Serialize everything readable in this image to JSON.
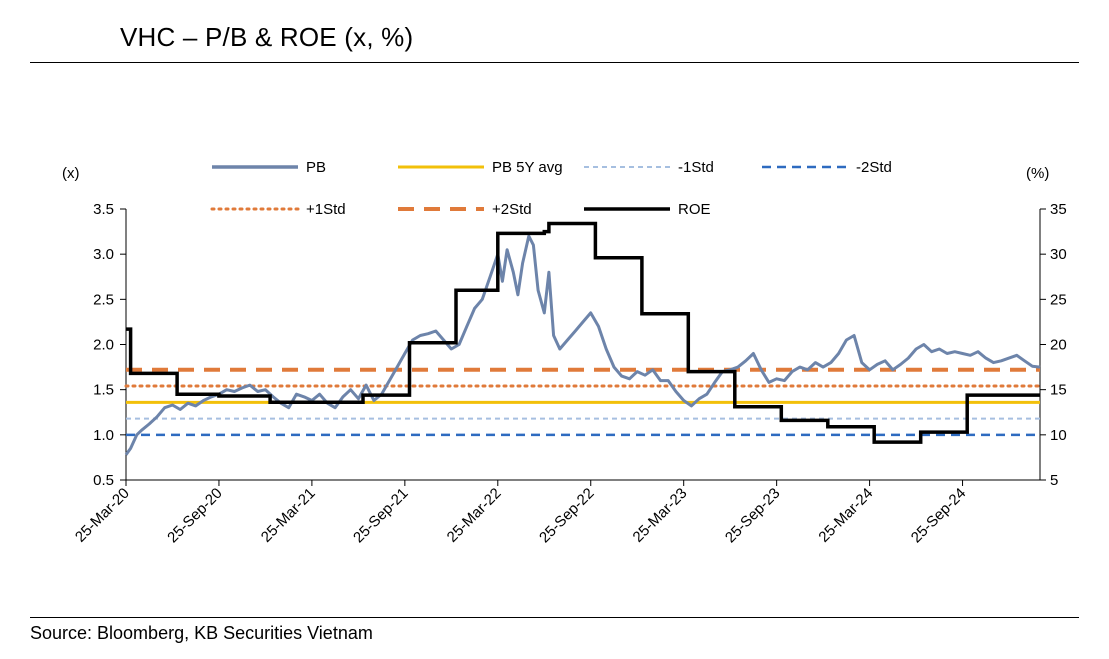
{
  "title": "VHC – P/B & ROE (x, %)",
  "source": "Source: Bloomberg, KB Securities Vietnam",
  "chart_data": {
    "type": "line",
    "left_axis": {
      "unit_label": "(x)",
      "ylim": [
        0.5,
        3.5
      ],
      "ticks": [
        "0.5",
        "1.0",
        "1.5",
        "2.0",
        "2.5",
        "3.0",
        "3.5"
      ]
    },
    "right_axis": {
      "unit_label": "(%)",
      "ylim": [
        5,
        35
      ],
      "ticks": [
        "5",
        "10",
        "15",
        "20",
        "25",
        "30",
        "35"
      ]
    },
    "x_ticks": [
      "25-Mar-20",
      "25-Sep-20",
      "25-Mar-21",
      "25-Sep-21",
      "25-Mar-22",
      "25-Sep-22",
      "25-Mar-23",
      "25-Sep-23",
      "25-Mar-24",
      "25-Sep-24"
    ],
    "x_range_months": [
      0,
      59
    ],
    "legend": [
      {
        "name": "PB",
        "color": "#6d84aa",
        "style": "solid-thick"
      },
      {
        "name": "PB 5Y avg",
        "color": "#f2c00a",
        "style": "solid"
      },
      {
        "name": "-1Std",
        "color": "#a6bfe0",
        "style": "dashed-thin"
      },
      {
        "name": "-2Std",
        "color": "#2e6bc0",
        "style": "dashed"
      },
      {
        "name": "+1Std",
        "color": "#e07a3a",
        "style": "dotted"
      },
      {
        "name": "+2Std",
        "color": "#e07a3a",
        "style": "dashed-thick"
      },
      {
        "name": "ROE",
        "color": "#000000",
        "style": "solid-thick"
      }
    ],
    "reference_lines": {
      "PB 5Y avg": 1.36,
      "-1Std": 1.18,
      "-2Std": 1.0,
      "+1Std": 1.54,
      "+2Std": 1.72
    },
    "series": [
      {
        "name": "PB",
        "axis": "left",
        "points": [
          [
            0,
            0.78
          ],
          [
            0.3,
            0.85
          ],
          [
            0.7,
            1.0
          ],
          [
            1,
            1.05
          ],
          [
            1.5,
            1.12
          ],
          [
            2,
            1.2
          ],
          [
            2.5,
            1.3
          ],
          [
            3,
            1.33
          ],
          [
            3.5,
            1.28
          ],
          [
            4,
            1.35
          ],
          [
            4.5,
            1.32
          ],
          [
            5,
            1.38
          ],
          [
            5.5,
            1.42
          ],
          [
            6,
            1.45
          ],
          [
            6.5,
            1.5
          ],
          [
            7,
            1.48
          ],
          [
            7.5,
            1.52
          ],
          [
            8,
            1.55
          ],
          [
            8.5,
            1.48
          ],
          [
            9,
            1.5
          ],
          [
            9.5,
            1.42
          ],
          [
            10,
            1.35
          ],
          [
            10.5,
            1.3
          ],
          [
            11,
            1.45
          ],
          [
            11.5,
            1.42
          ],
          [
            12,
            1.38
          ],
          [
            12.5,
            1.45
          ],
          [
            13,
            1.35
          ],
          [
            13.5,
            1.3
          ],
          [
            14,
            1.42
          ],
          [
            14.5,
            1.5
          ],
          [
            15,
            1.4
          ],
          [
            15.5,
            1.55
          ],
          [
            16,
            1.38
          ],
          [
            16.5,
            1.45
          ],
          [
            17,
            1.6
          ],
          [
            17.5,
            1.75
          ],
          [
            18,
            1.9
          ],
          [
            18.5,
            2.05
          ],
          [
            19,
            2.1
          ],
          [
            19.5,
            2.12
          ],
          [
            20,
            2.15
          ],
          [
            20.5,
            2.05
          ],
          [
            21,
            1.95
          ],
          [
            21.5,
            2.0
          ],
          [
            22,
            2.2
          ],
          [
            22.5,
            2.4
          ],
          [
            23,
            2.5
          ],
          [
            23.5,
            2.75
          ],
          [
            24,
            3.0
          ],
          [
            24.3,
            2.7
          ],
          [
            24.6,
            3.05
          ],
          [
            25,
            2.8
          ],
          [
            25.3,
            2.55
          ],
          [
            25.6,
            2.9
          ],
          [
            26,
            3.2
          ],
          [
            26.3,
            3.1
          ],
          [
            26.6,
            2.6
          ],
          [
            27,
            2.35
          ],
          [
            27.3,
            2.8
          ],
          [
            27.6,
            2.1
          ],
          [
            28,
            1.95
          ],
          [
            28.5,
            2.05
          ],
          [
            29,
            2.15
          ],
          [
            29.5,
            2.25
          ],
          [
            30,
            2.35
          ],
          [
            30.5,
            2.2
          ],
          [
            31,
            1.95
          ],
          [
            31.5,
            1.75
          ],
          [
            32,
            1.65
          ],
          [
            32.5,
            1.62
          ],
          [
            33,
            1.7
          ],
          [
            33.5,
            1.66
          ],
          [
            34,
            1.72
          ],
          [
            34.5,
            1.6
          ],
          [
            35,
            1.6
          ],
          [
            35.5,
            1.48
          ],
          [
            36,
            1.38
          ],
          [
            36.5,
            1.32
          ],
          [
            37,
            1.4
          ],
          [
            37.5,
            1.45
          ],
          [
            38,
            1.58
          ],
          [
            38.5,
            1.7
          ],
          [
            39,
            1.72
          ],
          [
            39.5,
            1.75
          ],
          [
            40,
            1.82
          ],
          [
            40.5,
            1.9
          ],
          [
            41,
            1.72
          ],
          [
            41.5,
            1.58
          ],
          [
            42,
            1.62
          ],
          [
            42.5,
            1.6
          ],
          [
            43,
            1.7
          ],
          [
            43.5,
            1.75
          ],
          [
            44,
            1.72
          ],
          [
            44.5,
            1.8
          ],
          [
            45,
            1.75
          ],
          [
            45.5,
            1.8
          ],
          [
            46,
            1.9
          ],
          [
            46.5,
            2.05
          ],
          [
            47,
            2.1
          ],
          [
            47.5,
            1.8
          ],
          [
            48,
            1.72
          ],
          [
            48.5,
            1.78
          ],
          [
            49,
            1.82
          ],
          [
            49.5,
            1.72
          ],
          [
            50,
            1.78
          ],
          [
            50.5,
            1.85
          ],
          [
            51,
            1.95
          ],
          [
            51.5,
            2.0
          ],
          [
            52,
            1.92
          ],
          [
            52.5,
            1.95
          ],
          [
            53,
            1.9
          ],
          [
            53.5,
            1.92
          ],
          [
            54,
            1.9
          ],
          [
            54.5,
            1.88
          ],
          [
            55,
            1.92
          ],
          [
            55.5,
            1.85
          ],
          [
            56,
            1.8
          ],
          [
            56.5,
            1.82
          ],
          [
            57,
            1.85
          ],
          [
            57.5,
            1.88
          ],
          [
            58,
            1.82
          ],
          [
            58.5,
            1.76
          ],
          [
            59,
            1.75
          ]
        ]
      },
      {
        "name": "ROE",
        "axis": "right",
        "steps": [
          [
            0,
            21.7
          ],
          [
            0.3,
            16.8
          ],
          [
            3.3,
            14.5
          ],
          [
            6,
            14.3
          ],
          [
            9.3,
            13.6
          ],
          [
            15.3,
            14.4
          ],
          [
            18.3,
            14.9
          ],
          [
            18.3,
            20.2
          ],
          [
            21.3,
            20.2
          ],
          [
            21.3,
            26.0
          ],
          [
            24,
            26.0
          ],
          [
            24,
            32.3
          ],
          [
            27,
            32.5
          ],
          [
            27.3,
            33.4
          ],
          [
            30.3,
            33.4
          ],
          [
            30.3,
            29.6
          ],
          [
            33.3,
            29.6
          ],
          [
            33.3,
            23.4
          ],
          [
            36.3,
            23.4
          ],
          [
            36.3,
            17.0
          ],
          [
            39.3,
            17.0
          ],
          [
            39.3,
            13.1
          ],
          [
            42.3,
            13.1
          ],
          [
            42.3,
            11.6
          ],
          [
            45.3,
            11.6
          ],
          [
            45.3,
            10.9
          ],
          [
            48.3,
            10.9
          ],
          [
            48.3,
            9.2
          ],
          [
            51.3,
            9.2
          ],
          [
            51.3,
            10.3
          ],
          [
            54.3,
            10.3
          ],
          [
            54.3,
            14.4
          ],
          [
            59,
            14.4
          ]
        ]
      }
    ]
  }
}
